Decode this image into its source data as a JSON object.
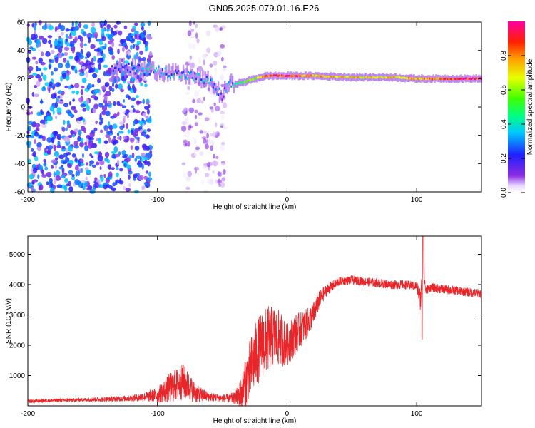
{
  "title": "GN05.2025.079.01.16.E26",
  "chart_data": [
    {
      "type": "heatmap",
      "xlabel": "Height of straight line (km)",
      "ylabel": "Frequency (Hz)",
      "xlim": [
        -200,
        150
      ],
      "ylim": [
        -60,
        60
      ],
      "x_ticks": [
        -200,
        -100,
        0,
        100
      ],
      "y_ticks": [
        -60,
        -40,
        -20,
        0,
        20,
        40,
        60
      ],
      "colorbar": {
        "label": "Normalized spectral amplitude",
        "range": [
          0,
          1
        ],
        "ticks": [
          0.0,
          0.2,
          0.4,
          0.6,
          0.8
        ],
        "tick_labels": [
          "0.0",
          "0.2",
          "0.4",
          "0.6",
          "0.8"
        ]
      },
      "noise_regions": [
        {
          "x": [
            -200,
            -105
          ],
          "y": [
            -60,
            60
          ],
          "level": 0.15
        },
        {
          "x": [
            -80,
            -48
          ],
          "y": [
            -60,
            60
          ],
          "level": 0.05
        }
      ],
      "ridge": [
        {
          "x": -135,
          "y": 28,
          "level": 0.15
        },
        {
          "x": -120,
          "y": 27,
          "level": 0.25
        },
        {
          "x": -105,
          "y": 26,
          "level": 0.35
        },
        {
          "x": -90,
          "y": 24,
          "level": 0.35
        },
        {
          "x": -75,
          "y": 22,
          "level": 0.3
        },
        {
          "x": -60,
          "y": 18,
          "level": 0.3
        },
        {
          "x": -50,
          "y": 8,
          "level": 0.2
        },
        {
          "x": -45,
          "y": 16,
          "level": 0.3
        },
        {
          "x": -35,
          "y": 17,
          "level": 0.5
        },
        {
          "x": -25,
          "y": 20,
          "level": 0.6
        },
        {
          "x": -15,
          "y": 22,
          "level": 0.85
        },
        {
          "x": 0,
          "y": 22,
          "level": 0.9
        },
        {
          "x": 20,
          "y": 22,
          "level": 0.75
        },
        {
          "x": 50,
          "y": 21,
          "level": 0.7
        },
        {
          "x": 80,
          "y": 21,
          "level": 0.7
        },
        {
          "x": 100,
          "y": 20,
          "level": 0.75
        },
        {
          "x": 125,
          "y": 20,
          "level": 0.85
        },
        {
          "x": 150,
          "y": 20,
          "level": 0.9
        }
      ]
    },
    {
      "type": "line",
      "xlabel": "Height of straight line (km)",
      "ylabel": "SNR (10 * v/v)",
      "xlim": [
        -200,
        150
      ],
      "ylim": [
        0,
        5600
      ],
      "x_ticks": [
        -200,
        -100,
        0,
        100
      ],
      "y_ticks": [
        1000,
        2000,
        3000,
        4000,
        5000
      ],
      "color": "#e8262a",
      "series": [
        {
          "x": [
            -200,
            -180,
            -160,
            -140,
            -120,
            -110,
            -100,
            -90,
            -80,
            -70,
            -60,
            -50,
            -40,
            -35,
            -30,
            -25,
            -20,
            -15,
            -10,
            -5,
            0,
            5,
            10,
            15,
            20,
            25,
            30,
            40,
            50,
            60,
            70,
            80,
            90,
            100,
            103,
            105,
            107,
            110,
            120,
            130,
            140,
            150
          ],
          "y": [
            150,
            180,
            200,
            220,
            250,
            300,
            350,
            600,
            800,
            400,
            300,
            250,
            250,
            400,
            1000,
            1600,
            2000,
            2200,
            2300,
            2200,
            2000,
            2300,
            2500,
            2700,
            3000,
            3500,
            3800,
            4100,
            4150,
            4100,
            4050,
            4000,
            4000,
            3950,
            3500,
            4600,
            3800,
            3900,
            3850,
            3800,
            3750,
            3700
          ],
          "spread": [
            60,
            60,
            60,
            80,
            100,
            150,
            250,
            500,
            600,
            300,
            150,
            120,
            200,
            600,
            1000,
            1100,
            1100,
            1100,
            1000,
            900,
            700,
            700,
            600,
            500,
            400,
            300,
            200,
            150,
            150,
            150,
            150,
            150,
            150,
            150,
            400,
            400,
            150,
            150,
            150,
            150,
            150,
            150
          ]
        }
      ]
    }
  ]
}
